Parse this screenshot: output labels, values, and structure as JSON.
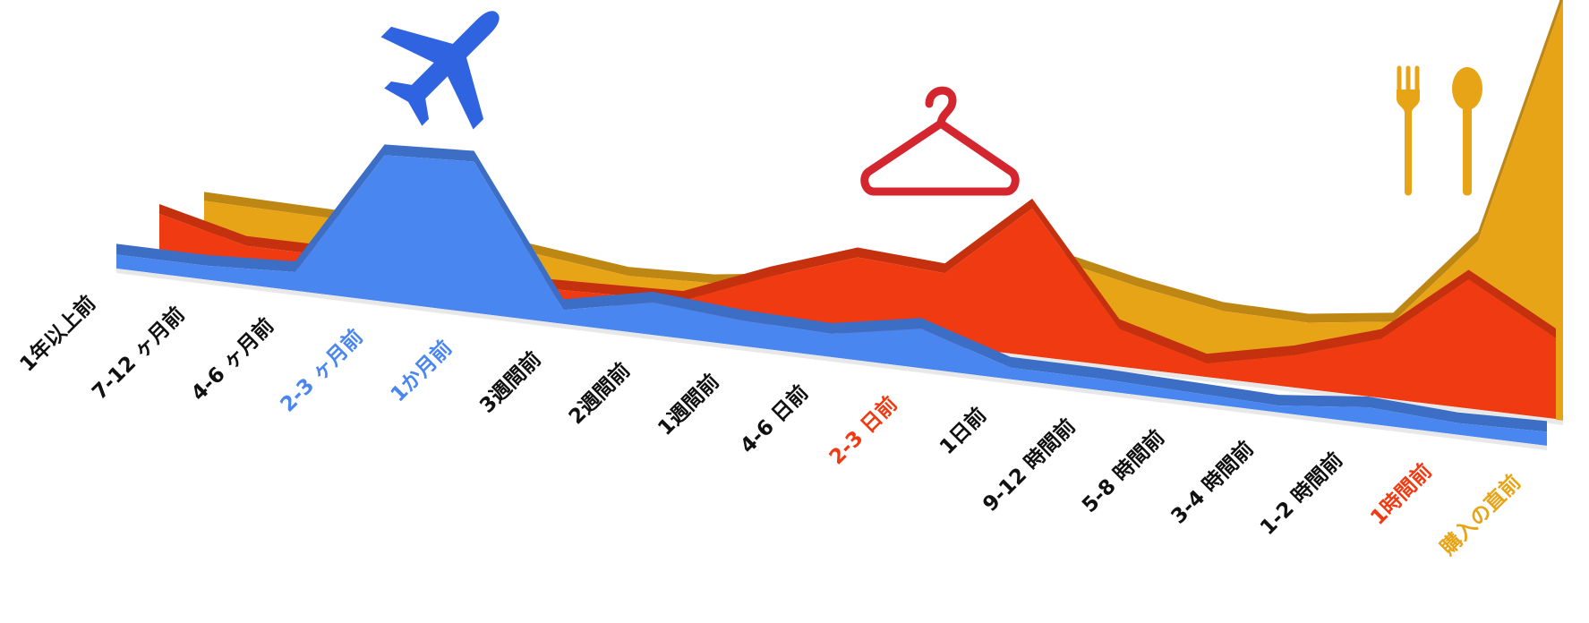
{
  "chart_data": {
    "type": "area",
    "title": "",
    "xlabel": "",
    "ylabel": "",
    "legend": "none",
    "grid": false,
    "categories": [
      "1年以上前",
      "7-12 ヶ月前",
      "4-6 ヶ月前",
      "2-3 ヶ月前",
      "1か月前",
      "3週間前",
      "2週間前",
      "1週間前",
      "4-6 日前",
      "2-3 日前",
      "1日前",
      "9-12 時間前",
      "5-8 時間前",
      "3-4 時間前",
      "1-2 時間前",
      "1時間前",
      "購入の直前"
    ],
    "highlight_colors": {
      "2-3 ヶ月前": "#4a86f0",
      "1か月前": "#4a86f0",
      "2-3 日前": "#f03a12",
      "1時間前": "#f03a12",
      "購入の直前": "#e8a417"
    },
    "default_label_color": "#111111",
    "series": [
      {
        "values": [
          0.08,
          0.08,
          0.08,
          0.08,
          0.06,
          0.04,
          0.05,
          0.08,
          0.1,
          0.06,
          0.22,
          0.18,
          0.15,
          0.15,
          0.18,
          0.4,
          1.0
        ],
        "color": "#e8a417",
        "icon": "utensils-icon"
      },
      {
        "values": [
          0.14,
          0.06,
          0.06,
          0.06,
          0.03,
          0.04,
          0.05,
          0.18,
          0.29,
          0.27,
          0.55,
          0.14,
          0.05,
          0.12,
          0.22,
          0.48,
          0.3
        ],
        "color": "#f03a12",
        "icon": "clothes-hanger-icon"
      },
      {
        "values": [
          0.06,
          0.06,
          0.08,
          0.63,
          0.65,
          0.06,
          0.14,
          0.11,
          0.1,
          0.17,
          0.05,
          0.05,
          0.04,
          0.03,
          0.07,
          0.05,
          0.06
        ],
        "color": "#4a86f0",
        "icon": "airplane-icon"
      }
    ]
  }
}
